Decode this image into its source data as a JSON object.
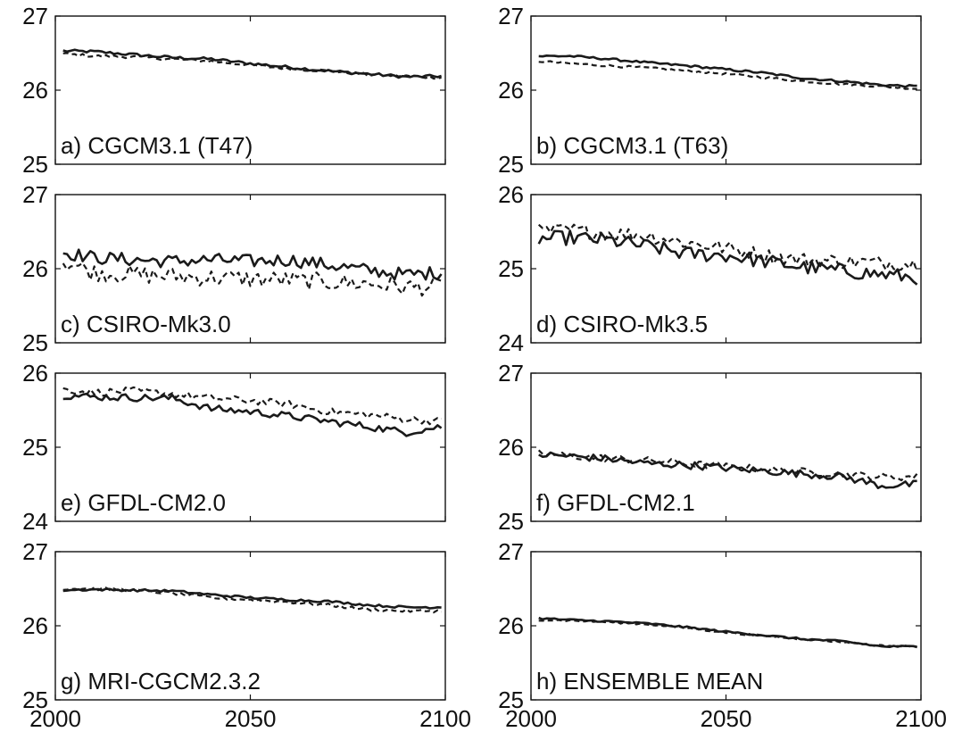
{
  "colors": {
    "line": "#1a1a1a",
    "axis": "#111111",
    "background": "#ffffff"
  },
  "chart_data": [
    {
      "type": "line",
      "label": "a) CGCM3.1 (T47)",
      "xlim": [
        2000,
        2100
      ],
      "ylim": [
        25,
        27
      ],
      "yticks": [
        "25",
        "26",
        "27"
      ],
      "xticks": [],
      "xticks_shown": false,
      "series": [
        {
          "style": "solid",
          "noise": 0.02,
          "x": [
            2002,
            2010,
            2020,
            2030,
            2040,
            2050,
            2060,
            2070,
            2080,
            2090,
            2099
          ],
          "y": [
            26.53,
            26.52,
            26.48,
            26.44,
            26.42,
            26.36,
            26.31,
            26.26,
            26.22,
            26.18,
            26.19
          ]
        },
        {
          "style": "dashed",
          "noise": 0.02,
          "x": [
            2002,
            2010,
            2020,
            2030,
            2040,
            2050,
            2060,
            2070,
            2080,
            2090,
            2099
          ],
          "y": [
            26.49,
            26.46,
            26.45,
            26.42,
            26.39,
            26.34,
            26.29,
            26.26,
            26.21,
            26.19,
            26.17
          ]
        }
      ]
    },
    {
      "type": "line",
      "label": "b) CGCM3.1 (T63)",
      "xlim": [
        2000,
        2100
      ],
      "ylim": [
        25,
        27
      ],
      "yticks": [
        "25",
        "26",
        "27"
      ],
      "xticks": [],
      "xticks_shown": false,
      "series": [
        {
          "style": "solid",
          "noise": 0.015,
          "x": [
            2002,
            2010,
            2020,
            2030,
            2040,
            2050,
            2060,
            2070,
            2080,
            2090,
            2099
          ],
          "y": [
            26.46,
            26.46,
            26.42,
            26.37,
            26.33,
            26.28,
            26.23,
            26.16,
            26.12,
            26.07,
            26.05
          ]
        },
        {
          "style": "dashed",
          "noise": 0.015,
          "x": [
            2002,
            2010,
            2020,
            2030,
            2040,
            2050,
            2060,
            2070,
            2080,
            2090,
            2099
          ],
          "y": [
            26.39,
            26.36,
            26.33,
            26.3,
            26.26,
            26.22,
            26.17,
            26.12,
            26.08,
            26.05,
            26.02
          ]
        }
      ]
    },
    {
      "type": "line",
      "label": "c) CSIRO-Mk3.0",
      "xlim": [
        2000,
        2100
      ],
      "ylim": [
        25,
        27
      ],
      "yticks": [
        "25",
        "26",
        "27"
      ],
      "xticks": [],
      "xticks_shown": false,
      "series": [
        {
          "style": "solid",
          "noise": 0.09,
          "x": [
            2002,
            2010,
            2020,
            2030,
            2040,
            2050,
            2060,
            2070,
            2080,
            2090,
            2099
          ],
          "y": [
            26.22,
            26.15,
            26.12,
            26.1,
            26.12,
            26.1,
            26.12,
            26.05,
            25.98,
            25.92,
            25.95
          ]
        },
        {
          "style": "dashed",
          "noise": 0.12,
          "x": [
            2002,
            2010,
            2020,
            2030,
            2040,
            2050,
            2060,
            2070,
            2080,
            2090,
            2099
          ],
          "y": [
            26.1,
            25.95,
            25.92,
            25.9,
            25.88,
            25.86,
            25.85,
            25.82,
            25.8,
            25.75,
            25.76
          ]
        }
      ]
    },
    {
      "type": "line",
      "label": "d) CSIRO-Mk3.5",
      "xlim": [
        2000,
        2100
      ],
      "ylim": [
        24,
        26
      ],
      "yticks": [
        "24",
        "25",
        "26"
      ],
      "xticks": [],
      "xticks_shown": false,
      "series": [
        {
          "style": "solid",
          "noise": 0.1,
          "x": [
            2002,
            2010,
            2020,
            2030,
            2040,
            2050,
            2060,
            2070,
            2080,
            2090,
            2099
          ],
          "y": [
            25.4,
            25.42,
            25.38,
            25.3,
            25.2,
            25.18,
            25.1,
            25.02,
            24.97,
            24.92,
            24.88
          ]
        },
        {
          "style": "dashed",
          "noise": 0.1,
          "x": [
            2002,
            2010,
            2020,
            2030,
            2040,
            2050,
            2060,
            2070,
            2080,
            2090,
            2099
          ],
          "y": [
            25.5,
            25.52,
            25.48,
            25.45,
            25.35,
            25.28,
            25.18,
            25.12,
            25.1,
            25.08,
            25.06
          ]
        }
      ]
    },
    {
      "type": "line",
      "label": "e) GFDL-CM2.0",
      "xlim": [
        2000,
        2100
      ],
      "ylim": [
        24,
        26
      ],
      "yticks": [
        "24",
        "25",
        "26"
      ],
      "xticks": [],
      "xticks_shown": false,
      "series": [
        {
          "style": "solid",
          "noise": 0.05,
          "x": [
            2002,
            2010,
            2020,
            2030,
            2040,
            2050,
            2060,
            2070,
            2080,
            2090,
            2099
          ],
          "y": [
            25.7,
            25.68,
            25.67,
            25.66,
            25.52,
            25.48,
            25.42,
            25.35,
            25.28,
            25.2,
            25.28
          ]
        },
        {
          "style": "dashed",
          "noise": 0.05,
          "x": [
            2002,
            2010,
            2020,
            2030,
            2040,
            2050,
            2060,
            2070,
            2080,
            2090,
            2099
          ],
          "y": [
            25.78,
            25.74,
            25.76,
            25.72,
            25.66,
            25.63,
            25.58,
            25.48,
            25.44,
            25.38,
            25.35
          ]
        }
      ]
    },
    {
      "type": "line",
      "label": "f) GFDL-CM2.1",
      "xlim": [
        2000,
        2100
      ],
      "ylim": [
        25,
        27
      ],
      "yticks": [
        "25",
        "26",
        "27"
      ],
      "xticks": [],
      "xticks_shown": false,
      "series": [
        {
          "style": "solid",
          "noise": 0.05,
          "x": [
            2002,
            2010,
            2020,
            2030,
            2040,
            2050,
            2060,
            2070,
            2080,
            2090,
            2099
          ],
          "y": [
            25.9,
            25.88,
            25.84,
            25.78,
            25.76,
            25.72,
            25.68,
            25.64,
            25.6,
            25.48,
            25.5
          ]
        },
        {
          "style": "dashed",
          "noise": 0.05,
          "x": [
            2002,
            2010,
            2020,
            2030,
            2040,
            2050,
            2060,
            2070,
            2080,
            2090,
            2099
          ],
          "y": [
            25.92,
            25.88,
            25.85,
            25.82,
            25.78,
            25.74,
            25.7,
            25.67,
            25.64,
            25.6,
            25.6
          ]
        }
      ]
    },
    {
      "type": "line",
      "label": "g) MRI-CGCM2.3.2",
      "xlim": [
        2000,
        2100
      ],
      "ylim": [
        25,
        27
      ],
      "yticks": [
        "25",
        "26",
        "27"
      ],
      "xticks": [
        "2000",
        "2050",
        "2100"
      ],
      "xticks_shown": true,
      "series": [
        {
          "style": "solid",
          "noise": 0.015,
          "x": [
            2002,
            2010,
            2020,
            2030,
            2040,
            2050,
            2060,
            2070,
            2080,
            2090,
            2099
          ],
          "y": [
            26.48,
            26.49,
            26.48,
            26.47,
            26.42,
            26.38,
            26.35,
            26.33,
            26.28,
            26.25,
            26.25
          ]
        },
        {
          "style": "dashed",
          "noise": 0.02,
          "x": [
            2002,
            2010,
            2020,
            2030,
            2040,
            2050,
            2060,
            2070,
            2080,
            2090,
            2099
          ],
          "y": [
            26.5,
            26.5,
            26.48,
            26.44,
            26.38,
            26.35,
            26.32,
            26.28,
            26.22,
            26.2,
            26.2
          ]
        }
      ]
    },
    {
      "type": "line",
      "label": "h) ENSEMBLE MEAN",
      "xlim": [
        2000,
        2100
      ],
      "ylim": [
        25,
        27
      ],
      "yticks": [
        "25",
        "26",
        "27"
      ],
      "xticks": [
        "2000",
        "2050",
        "2100"
      ],
      "xticks_shown": true,
      "series": [
        {
          "style": "solid",
          "noise": 0.012,
          "x": [
            2002,
            2010,
            2020,
            2030,
            2040,
            2050,
            2060,
            2070,
            2080,
            2090,
            2099
          ],
          "y": [
            26.1,
            26.08,
            26.06,
            26.03,
            25.98,
            25.92,
            25.87,
            25.82,
            25.79,
            25.72,
            25.72
          ]
        },
        {
          "style": "dashed",
          "noise": 0.012,
          "x": [
            2002,
            2010,
            2020,
            2030,
            2040,
            2050,
            2060,
            2070,
            2080,
            2090,
            2099
          ],
          "y": [
            26.08,
            26.07,
            26.05,
            26.02,
            25.97,
            25.91,
            25.86,
            25.82,
            25.78,
            25.73,
            25.72
          ]
        }
      ]
    }
  ]
}
